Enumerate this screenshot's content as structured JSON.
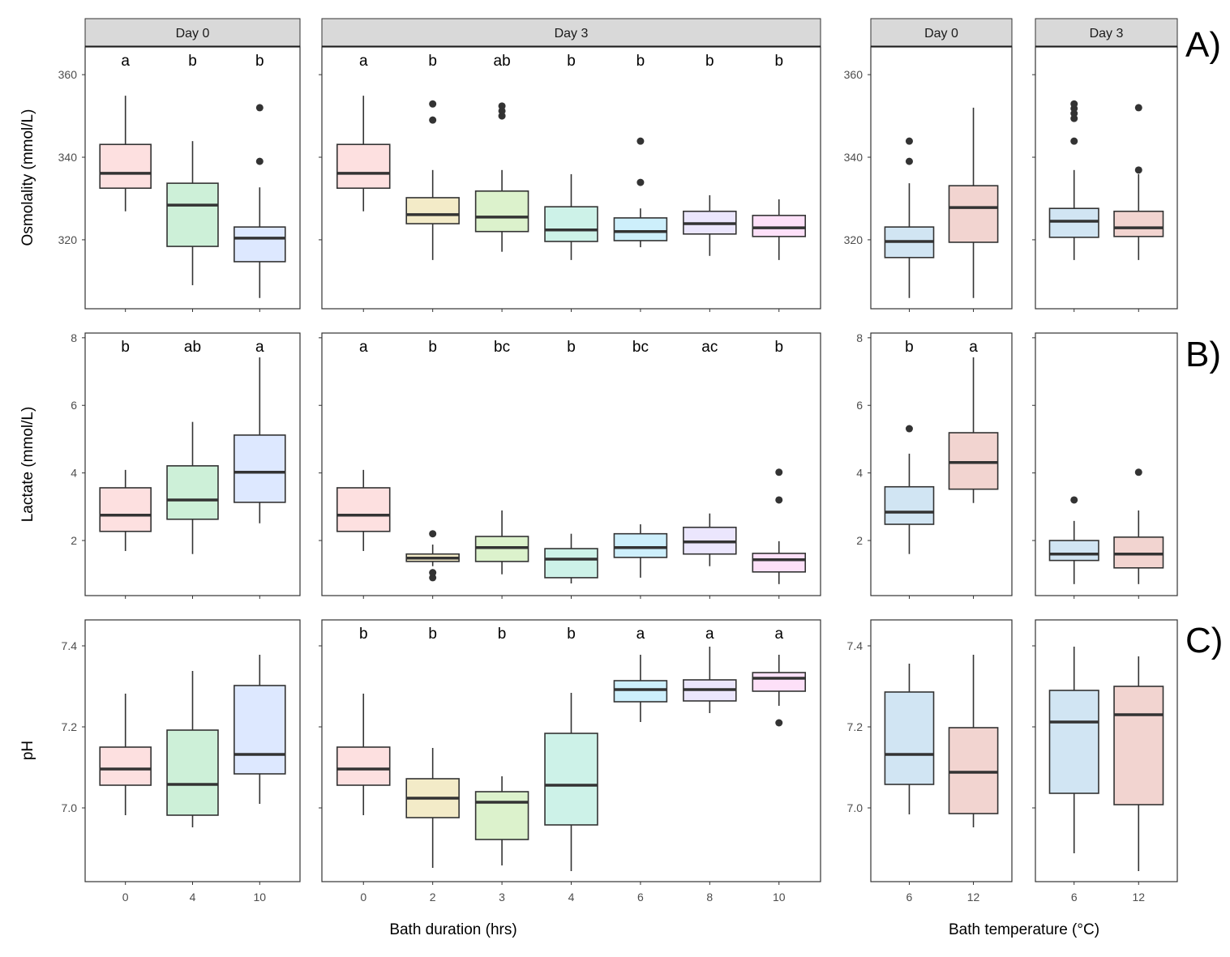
{
  "chart_data": {
    "type": "boxplot",
    "row_tags": [
      "A)",
      "B)",
      "C)"
    ],
    "row_ylabels": [
      "Osmolality (mmol/L)",
      "Lactate (mmol/L)",
      "pH"
    ],
    "row_ylims": [
      [
        303.3,
        366.7
      ],
      [
        0.37,
        8.14
      ],
      [
        6.818,
        7.464
      ]
    ],
    "row_yticks": [
      [
        320,
        340,
        360
      ],
      [
        2,
        4,
        6,
        8
      ],
      [
        7.0,
        7.2,
        7.4
      ]
    ],
    "row_ytick_labels": [
      [
        "320",
        "340",
        "360"
      ],
      [
        "2",
        "4",
        "6",
        "8"
      ],
      [
        "7.0",
        "7.2",
        "7.4"
      ]
    ],
    "xlabels": [
      "Bath duration (hrs)",
      "Bath temperature (°C)"
    ],
    "strips": [
      "Day 0",
      "Day 3",
      "Day 0",
      "Day 3"
    ],
    "colors": {
      "dur_day0": {
        "0": "#fde0e0",
        "4": "#cdf0d8",
        "10": "#dde8ff"
      },
      "dur_day3": {
        "0": "#fde0e0",
        "2": "#f3ebc8",
        "3": "#dcf2cc",
        "4": "#cdf2e8",
        "6": "#cdeffb",
        "8": "#ebe6fd",
        "10": "#fde0f8"
      },
      "temp": {
        "6": "#d1e5f3",
        "12": "#f2d4d0"
      },
      "box_line": "#333333",
      "strip_fill": "#d9d9d9"
    },
    "panels": [
      {
        "row": 0,
        "col": 0,
        "palette": "dur_day0",
        "categories": [
          "0",
          "4",
          "10"
        ],
        "letters": [
          "a",
          "b",
          "b"
        ],
        "boxes": [
          [
            326.9,
            332.5,
            336.1,
            343.1,
            354.9,
            []
          ],
          [
            309,
            318.4,
            328.4,
            333.7,
            343.9,
            []
          ],
          [
            305.9,
            314.7,
            320.4,
            323.1,
            332.7,
            [
              339,
              352
            ]
          ]
        ]
      },
      {
        "row": 0,
        "col": 1,
        "palette": "dur_day3",
        "categories": [
          "0",
          "2",
          "3",
          "4",
          "6",
          "8",
          "10"
        ],
        "letters": [
          "a",
          "b",
          "ab",
          "b",
          "b",
          "b",
          "b"
        ],
        "boxes": [
          [
            326.9,
            332.5,
            336.1,
            343.1,
            354.9,
            []
          ],
          [
            315.1,
            323.9,
            326.1,
            330.2,
            336.9,
            [
              349,
              352.9
            ]
          ],
          [
            317.1,
            322,
            325.5,
            331.8,
            336.9,
            [
              350,
              351.2,
              352.4
            ]
          ],
          [
            315.1,
            319.6,
            322.4,
            328,
            335.9,
            []
          ],
          [
            318.2,
            319.8,
            322,
            325.3,
            327.6,
            [
              333.9,
              343.9
            ]
          ],
          [
            316.1,
            321.4,
            323.9,
            326.9,
            330.8,
            []
          ],
          [
            315.1,
            320.8,
            322.9,
            325.9,
            329.8,
            []
          ]
        ]
      },
      {
        "row": 0,
        "col": 2,
        "palette": "temp",
        "categories": [
          "6",
          "12"
        ],
        "letters": [],
        "boxes": [
          [
            305.9,
            315.7,
            319.6,
            323.1,
            333.7,
            [
              339,
              343.9
            ]
          ],
          [
            305.9,
            319.4,
            327.8,
            333.1,
            352,
            []
          ]
        ]
      },
      {
        "row": 0,
        "col": 3,
        "palette": "temp",
        "categories": [
          "6",
          "12"
        ],
        "letters": [],
        "boxes": [
          [
            315.1,
            320.6,
            324.5,
            327.6,
            336.9,
            [
              343.9,
              349.4,
              350.6,
              351.8,
              352.9
            ]
          ],
          [
            315.1,
            320.8,
            322.9,
            326.9,
            335.9,
            [
              336.9,
              352
            ]
          ]
        ]
      },
      {
        "row": 1,
        "col": 0,
        "palette": "dur_day0",
        "categories": [
          "0",
          "4",
          "10"
        ],
        "letters": [
          "b",
          "ab",
          "a"
        ],
        "boxes": [
          [
            1.69,
            2.27,
            2.75,
            3.56,
            4.09,
            []
          ],
          [
            1.6,
            2.63,
            3.2,
            4.21,
            5.51,
            []
          ],
          [
            2.51,
            3.13,
            4.02,
            5.12,
            7.42,
            []
          ]
        ]
      },
      {
        "row": 1,
        "col": 1,
        "palette": "dur_day3",
        "categories": [
          "0",
          "2",
          "3",
          "4",
          "6",
          "8",
          "10"
        ],
        "letters": [
          "a",
          "b",
          "bc",
          "b",
          "bc",
          "ac",
          "b"
        ],
        "boxes": [
          [
            1.69,
            2.27,
            2.75,
            3.56,
            4.09,
            []
          ],
          [
            1.24,
            1.38,
            1.48,
            1.6,
            1.88,
            [
              0.9,
              1.05,
              2.2
            ]
          ],
          [
            1.0,
            1.38,
            1.79,
            2.12,
            2.89,
            []
          ],
          [
            0.73,
            0.9,
            1.45,
            1.76,
            2.2,
            []
          ],
          [
            0.9,
            1.5,
            1.79,
            2.2,
            2.48,
            []
          ],
          [
            1.24,
            1.6,
            1.96,
            2.39,
            2.8,
            []
          ],
          [
            0.71,
            1.07,
            1.43,
            1.62,
            1.98,
            [
              3.2,
              4.02
            ]
          ]
        ]
      },
      {
        "row": 1,
        "col": 2,
        "palette": "temp",
        "categories": [
          "6",
          "12"
        ],
        "letters": [
          "b",
          "a"
        ],
        "boxes": [
          [
            1.6,
            2.48,
            2.84,
            3.59,
            4.57,
            [
              5.31
            ]
          ],
          [
            3.11,
            3.52,
            4.31,
            5.19,
            7.42,
            []
          ]
        ]
      },
      {
        "row": 1,
        "col": 3,
        "palette": "temp",
        "categories": [
          "6",
          "12"
        ],
        "letters": [],
        "boxes": [
          [
            0.71,
            1.41,
            1.6,
            2.0,
            2.58,
            [
              3.2
            ]
          ],
          [
            0.71,
            1.19,
            1.6,
            2.1,
            2.89,
            [
              4.02
            ]
          ]
        ]
      },
      {
        "row": 2,
        "col": 0,
        "palette": "dur_day0",
        "categories": [
          "0",
          "4",
          "10"
        ],
        "letters": [],
        "boxes": [
          [
            6.982,
            7.056,
            7.096,
            7.15,
            7.282,
            []
          ],
          [
            6.952,
            6.982,
            7.058,
            7.192,
            7.338,
            []
          ],
          [
            7.01,
            7.084,
            7.132,
            7.302,
            7.378,
            []
          ]
        ]
      },
      {
        "row": 2,
        "col": 1,
        "palette": "dur_day3",
        "categories": [
          "0",
          "2",
          "3",
          "4",
          "6",
          "8",
          "10"
        ],
        "letters": [
          "b",
          "b",
          "b",
          "b",
          "a",
          "a",
          "a"
        ],
        "boxes": [
          [
            6.982,
            7.056,
            7.096,
            7.15,
            7.282,
            []
          ],
          [
            6.852,
            6.976,
            7.024,
            7.072,
            7.148,
            []
          ],
          [
            6.858,
            6.922,
            7.014,
            7.04,
            7.078,
            []
          ],
          [
            6.844,
            6.958,
            7.056,
            7.184,
            7.284,
            []
          ],
          [
            7.212,
            7.262,
            7.292,
            7.314,
            7.378,
            []
          ],
          [
            7.234,
            7.264,
            7.292,
            7.316,
            7.398,
            []
          ],
          [
            7.252,
            7.288,
            7.32,
            7.334,
            7.378,
            [
              7.21
            ]
          ]
        ]
      },
      {
        "row": 2,
        "col": 2,
        "palette": "temp",
        "categories": [
          "6",
          "12"
        ],
        "letters": [],
        "boxes": [
          [
            6.984,
            7.058,
            7.132,
            7.286,
            7.356,
            []
          ],
          [
            6.952,
            6.986,
            7.088,
            7.198,
            7.378,
            []
          ]
        ]
      },
      {
        "row": 2,
        "col": 3,
        "palette": "temp",
        "categories": [
          "6",
          "12"
        ],
        "letters": [],
        "boxes": [
          [
            6.888,
            7.036,
            7.212,
            7.29,
            7.398,
            []
          ],
          [
            6.844,
            7.008,
            7.23,
            7.3,
            7.374,
            []
          ]
        ]
      }
    ]
  }
}
